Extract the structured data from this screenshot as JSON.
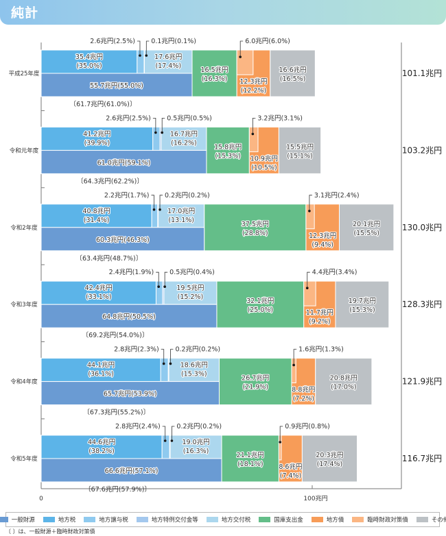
{
  "header": {
    "title": "純計"
  },
  "note": "〔 〕は、一般財源＋臨時財政対策債",
  "chart_data": {
    "type": "bar",
    "orientation": "horizontal-stacked",
    "title": "純計",
    "unit": "兆円",
    "xlim": [
      0,
      130
    ],
    "x_ticks": [
      {
        "value": 0,
        "label": "0"
      },
      {
        "value": 100,
        "label": "100兆円"
      }
    ],
    "colors": {
      "一般財源": "#6a9bd3",
      "地方税": "#5cb4e8",
      "地方譲与税": "#8fcaef",
      "地方特例交付金等": "#a4c8ee",
      "地方交付税": "#acd7ee",
      "国庫支出金": "#64be89",
      "地方債": "#f79c58",
      "臨時財政対策債": "#fbb683",
      "その他": "#bcc1c5"
    },
    "legend": [
      "一般財源",
      "地方税",
      "地方譲与税",
      "地方特例交付金等",
      "地方交付税",
      "国庫支出金",
      "地方債",
      "臨時財政対策債",
      "その他"
    ],
    "categories": [
      "平成25年度",
      "令和元年度",
      "令和2年度",
      "令和3年度",
      "令和4年度",
      "令和5年度"
    ],
    "rows": [
      {
        "year": "平成25年度",
        "total": "101.1兆円",
        "地方税": {
          "value": 35.4,
          "label1": "35.4兆円",
          "label2": "(35.0%)"
        },
        "地方譲与税": {
          "value": 2.6,
          "label": "2.6兆円(2.5%)"
        },
        "地方特例交付金等": {
          "value": 0.1,
          "label": "0.1兆円(0.1%)"
        },
        "地方交付税": {
          "value": 17.6,
          "label1": "17.6兆円",
          "label2": "(17.4%)"
        },
        "一般財源": {
          "value": 55.7,
          "label": "55.7兆円(55.0%)"
        },
        "一般財源_臨財債": "〔61.7兆円(61.0%)〕",
        "国庫支出金": {
          "value": 16.5,
          "label1": "16.5兆円",
          "label2": "(16.3%)"
        },
        "地方債": {
          "value": 12.3,
          "label1": "12.3兆円",
          "label2": "(12.2%)"
        },
        "臨時財政対策債": {
          "value": 6.0,
          "label": "6.0兆円(6.0%)"
        },
        "その他": {
          "value": 16.6,
          "label1": "16.6兆円",
          "label2": "(16.5%)"
        }
      },
      {
        "year": "令和元年度",
        "total": "103.2兆円",
        "地方税": {
          "value": 41.2,
          "label1": "41.2兆円",
          "label2": "(39.9%)"
        },
        "地方譲与税": {
          "value": 2.6,
          "label": "2.6兆円(2.5%)"
        },
        "地方特例交付金等": {
          "value": 0.5,
          "label": "0.5兆円(0.5%)"
        },
        "地方交付税": {
          "value": 16.7,
          "label1": "16.7兆円",
          "label2": "(16.2%)"
        },
        "一般財源": {
          "value": 61.0,
          "label": "61.0兆円(59.1%)"
        },
        "一般財源_臨財債": "〔64.3兆円(62.2%)〕",
        "国庫支出金": {
          "value": 15.8,
          "label1": "15.8兆円",
          "label2": "(15.3%)"
        },
        "地方債": {
          "value": 10.9,
          "label1": "10.9兆円",
          "label2": "(10.5%)"
        },
        "臨時財政対策債": {
          "value": 3.2,
          "label": "3.2兆円(3.1%)"
        },
        "その他": {
          "value": 15.5,
          "label1": "15.5兆円",
          "label2": "(15.1%)"
        }
      },
      {
        "year": "令和2年度",
        "total": "130.0兆円",
        "地方税": {
          "value": 40.8,
          "label1": "40.8兆円",
          "label2": "(31.4%)"
        },
        "地方譲与税": {
          "value": 2.2,
          "label": "2.2兆円(1.7%)"
        },
        "地方特例交付金等": {
          "value": 0.2,
          "label": "0.2兆円(0.2%)"
        },
        "地方交付税": {
          "value": 17.0,
          "label1": "17.0兆円",
          "label2": "(13.1%)"
        },
        "一般財源": {
          "value": 60.3,
          "label": "60.3兆円(46.3%)"
        },
        "一般財源_臨財債": "〔63.4兆円(48.7%)〕",
        "国庫支出金": {
          "value": 37.5,
          "label1": "37.5兆円",
          "label2": "(28.8%)"
        },
        "地方債": {
          "value": 12.3,
          "label1": "12.3兆円",
          "label2": "(9.4%)"
        },
        "臨時財政対策債": {
          "value": 3.1,
          "label": "3.1兆円(2.4%)"
        },
        "その他": {
          "value": 20.1,
          "label1": "20.1兆円",
          "label2": "(15.5%)"
        }
      },
      {
        "year": "令和3年度",
        "total": "128.3兆円",
        "地方税": {
          "value": 42.4,
          "label1": "42.4兆円",
          "label2": "(33.1%)"
        },
        "地方譲与税": {
          "value": 2.4,
          "label": "2.4兆円(1.9%)"
        },
        "地方特例交付金等": {
          "value": 0.5,
          "label": "0.5兆円(0.4%)"
        },
        "地方交付税": {
          "value": 19.5,
          "label1": "19.5兆円",
          "label2": "(15.2%)"
        },
        "一般財源": {
          "value": 64.8,
          "label": "64.8兆円(50.5%)"
        },
        "一般財源_臨財債": "〔69.2兆円(54.0%)〕",
        "国庫支出金": {
          "value": 32.1,
          "label1": "32.1兆円",
          "label2": "(25.0%)"
        },
        "地方債": {
          "value": 11.7,
          "label1": "11.7兆円",
          "label2": "(9.2%)"
        },
        "臨時財政対策債": {
          "value": 4.4,
          "label": "4.4兆円(3.4%)"
        },
        "その他": {
          "value": 19.7,
          "label1": "19.7兆円",
          "label2": "(15.3%)"
        }
      },
      {
        "year": "令和4年度",
        "total": "121.9兆円",
        "地方税": {
          "value": 44.1,
          "label1": "44.1兆円",
          "label2": "(36.1%)"
        },
        "地方譲与税": {
          "value": 2.8,
          "label": "2.8兆円(2.3%)"
        },
        "地方特例交付金等": {
          "value": 0.2,
          "label": "0.2兆円(0.2%)"
        },
        "地方交付税": {
          "value": 18.6,
          "label1": "18.6兆円",
          "label2": "(15.3%)"
        },
        "一般財源": {
          "value": 65.7,
          "label": "65.7兆円(53.9%)"
        },
        "一般財源_臨財債": "〔67.3兆円(55.2%)〕",
        "国庫支出金": {
          "value": 26.7,
          "label1": "26.7兆円",
          "label2": "(21.9%)"
        },
        "地方債": {
          "value": 8.8,
          "label1": "8.8兆円",
          "label2": "(7.2%)"
        },
        "臨時財政対策債": {
          "value": 1.6,
          "label": "1.6兆円(1.3%)"
        },
        "その他": {
          "value": 20.8,
          "label1": "20.8兆円",
          "label2": "(17.0%)"
        }
      },
      {
        "year": "令和5年度",
        "total": "116.7兆円",
        "地方税": {
          "value": 44.6,
          "label1": "44.6兆円",
          "label2": "(38.2%)"
        },
        "地方譲与税": {
          "value": 2.8,
          "label": "2.8兆円(2.4%)"
        },
        "地方特例交付金等": {
          "value": 0.2,
          "label": "0.2兆円(0.2%)"
        },
        "地方交付税": {
          "value": 19.0,
          "label1": "19.0兆円",
          "label2": "(16.3%)"
        },
        "一般財源": {
          "value": 66.6,
          "label": "66.6兆円(57.1%)"
        },
        "一般財源_臨財債": "〔67.6兆円(57.9%)〕",
        "国庫支出金": {
          "value": 21.1,
          "label1": "21.1兆円",
          "label2": "(18.1%)"
        },
        "地方債": {
          "value": 8.6,
          "label1": "8.6兆円",
          "label2": "(7.4%)"
        },
        "臨時財政対策債": {
          "value": 0.9,
          "label": "0.9兆円(0.8%)"
        },
        "その他": {
          "value": 20.3,
          "label1": "20.3兆円",
          "label2": "(17.4%)"
        }
      }
    ]
  }
}
